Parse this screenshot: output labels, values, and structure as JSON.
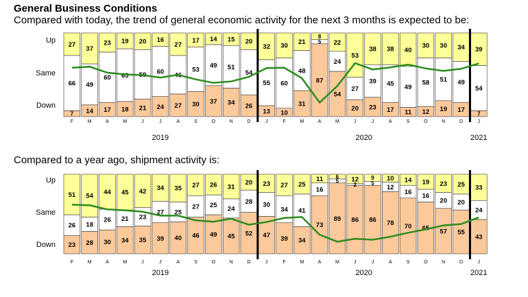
{
  "title": "General Business Conditions",
  "row_labels": {
    "up": "Up",
    "same": "Same",
    "down": "Down"
  },
  "colors": {
    "up": "#FFFF99",
    "same": "#FFFFFF",
    "down": "#FCC99B",
    "line": "#2A8C1C",
    "divider": "#000000"
  },
  "chart_data": [
    {
      "type": "bar",
      "subtype": "100% stacked bar with net-index line",
      "title": "Compared with today, the trend of general economic activity for the next 3 months is expected to be:",
      "categories": [
        "F",
        "M",
        "A",
        "M",
        "J",
        "J",
        "A",
        "S",
        "O",
        "N",
        "D",
        "J",
        "F",
        "M",
        "A",
        "M",
        "J",
        "J",
        "A",
        "S",
        "O",
        "N",
        "D",
        "J"
      ],
      "years": [
        {
          "label": "2019",
          "start": 0,
          "end": 10
        },
        {
          "label": "2020",
          "start": 11,
          "end": 22
        },
        {
          "label": "2021",
          "start": 23,
          "end": 23
        }
      ],
      "series": [
        {
          "name": "Up",
          "values": [
            27,
            37,
            23,
            19,
            20,
            16,
            27,
            17,
            14,
            15,
            20,
            32,
            30,
            21,
            8,
            22,
            53,
            38,
            38,
            40,
            30,
            30,
            34,
            39
          ]
        },
        {
          "name": "Same",
          "values": [
            66,
            49,
            60,
            63,
            59,
            60,
            46,
            53,
            49,
            51,
            54,
            55,
            60,
            48,
            5,
            24,
            27,
            39,
            45,
            49,
            58,
            51,
            49,
            54
          ]
        },
        {
          "name": "Down",
          "values": [
            7,
            14,
            17,
            18,
            21,
            24,
            27,
            30,
            37,
            34,
            26,
            13,
            10,
            31,
            87,
            54,
            20,
            23,
            17,
            11,
            12,
            19,
            17,
            7
          ]
        }
      ],
      "ylim": [
        0,
        100
      ]
    },
    {
      "type": "bar",
      "subtype": "100% stacked bar with net-index line",
      "title": "Compared to a year ago, shipment activity is:",
      "categories": [
        "F",
        "M",
        "A",
        "M",
        "J",
        "J",
        "A",
        "S",
        "O",
        "N",
        "D",
        "J",
        "F",
        "M",
        "A",
        "M",
        "J",
        "J",
        "A",
        "S",
        "O",
        "N",
        "D",
        "J"
      ],
      "years": [
        {
          "label": "2019",
          "start": 0,
          "end": 10
        },
        {
          "label": "2020",
          "start": 11,
          "end": 22
        },
        {
          "label": "2021",
          "start": 23,
          "end": 23
        }
      ],
      "series": [
        {
          "name": "Up",
          "values": [
            51,
            54,
            44,
            45,
            42,
            34,
            35,
            27,
            26,
            31,
            20,
            23,
            27,
            25,
            11,
            6,
            12,
            9,
            10,
            14,
            19,
            23,
            25,
            33
          ]
        },
        {
          "name": "Same",
          "values": [
            26,
            18,
            26,
            21,
            23,
            27,
            25,
            27,
            25,
            24,
            28,
            30,
            34,
            41,
            16,
            5,
            2,
            5,
            12,
            16,
            16,
            20,
            20,
            24
          ]
        },
        {
          "name": "Down",
          "values": [
            23,
            28,
            30,
            34,
            35,
            39,
            40,
            46,
            49,
            45,
            52,
            47,
            39,
            34,
            73,
            89,
            86,
            86,
            78,
            70,
            65,
            57,
            55,
            43
          ]
        }
      ],
      "ylim": [
        0,
        100
      ]
    }
  ]
}
